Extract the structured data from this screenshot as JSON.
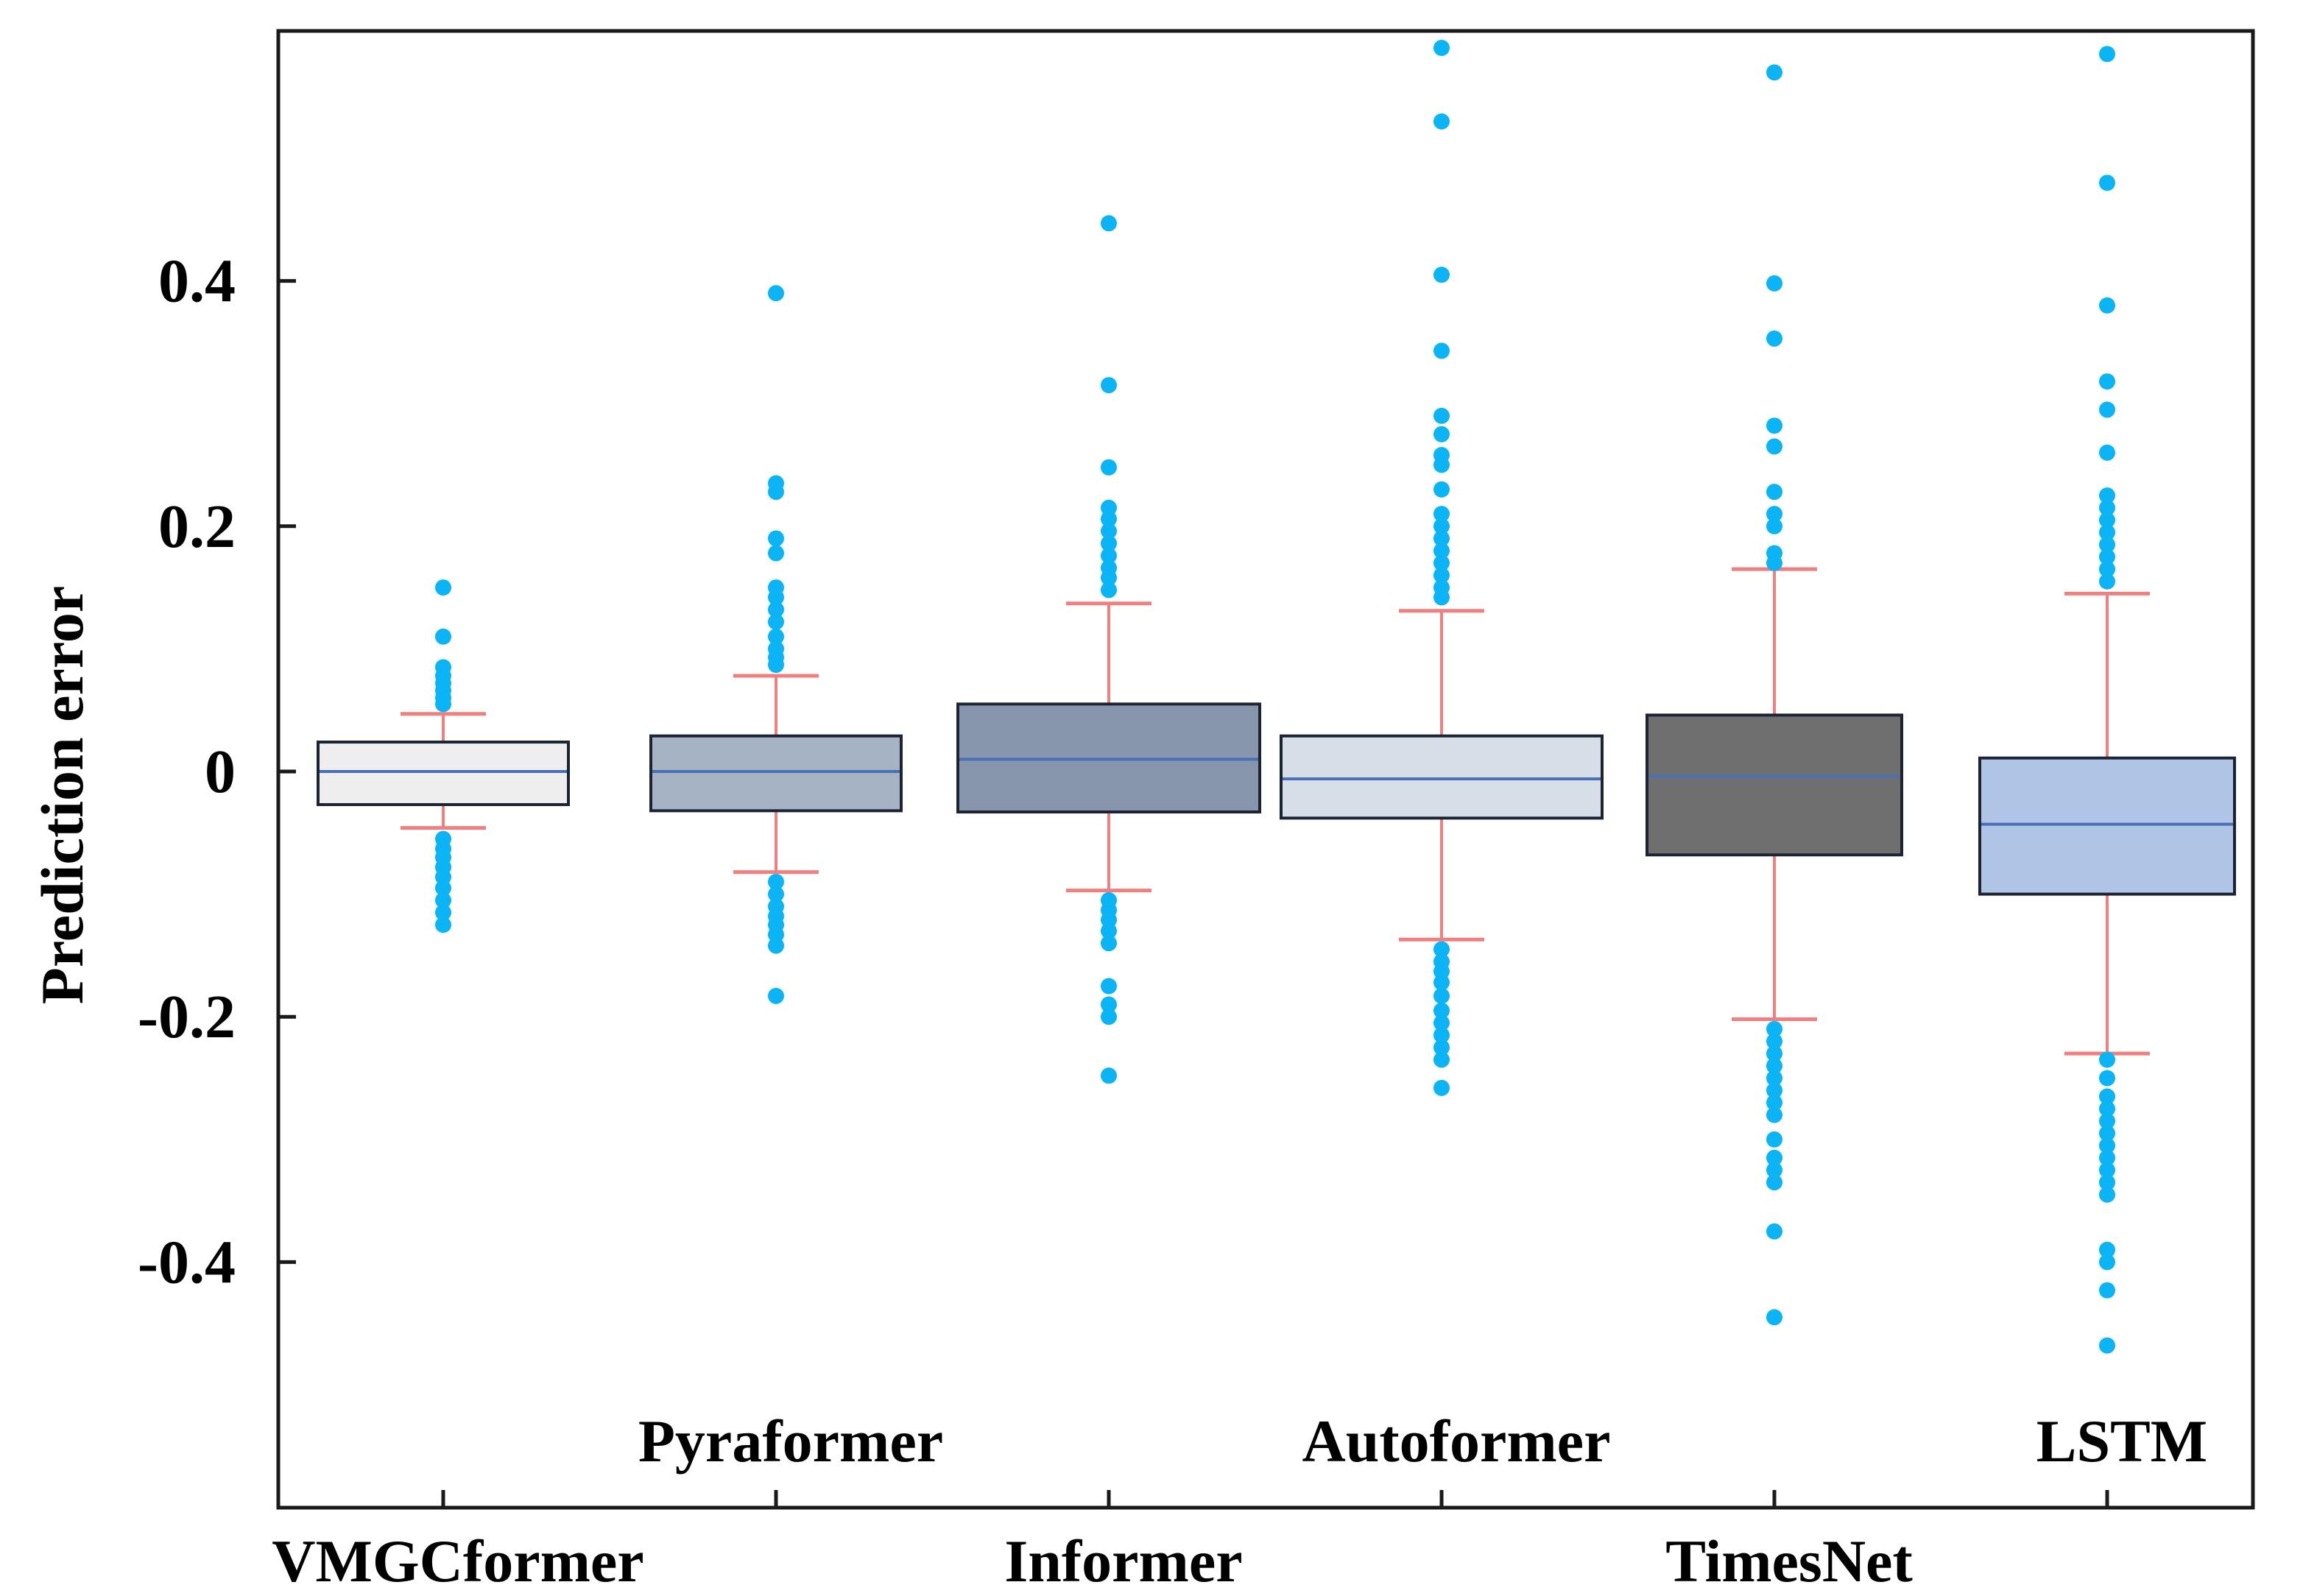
{
  "chart_data": {
    "type": "box",
    "title": "",
    "xlabel": "",
    "ylabel": "Prediction error",
    "ylim": [
      -0.6,
      0.6
    ],
    "yticks": [
      {
        "value": 0.4,
        "label": "0.4"
      },
      {
        "value": 0.2,
        "label": "0.2"
      },
      {
        "value": 0,
        "label": "0"
      },
      {
        "value": -0.2,
        "label": "-0.2"
      },
      {
        "value": -0.4,
        "label": "-0.4"
      }
    ],
    "grid": false,
    "legend": "none",
    "colors": {
      "median": "#4a6fb5",
      "whisker": "#f07f7f",
      "outlier": "#0bb5f5",
      "box_edge": "#1c2433",
      "axis": "#1a1a1a"
    },
    "series": [
      {
        "name": "VMGCformer",
        "label_row": "low",
        "fill": "#edeeed",
        "q1": -0.027,
        "median": 0.0,
        "q3": 0.024,
        "whisker_low": -0.046,
        "whisker_high": 0.047,
        "outliers": [
          0.15,
          0.11,
          0.085,
          0.078,
          0.072,
          0.066,
          0.06,
          0.055,
          -0.055,
          -0.063,
          -0.07,
          -0.078,
          -0.086,
          -0.095,
          -0.105,
          -0.115,
          -0.125
        ]
      },
      {
        "name": "Pyraformer",
        "label_row": "high",
        "fill": "#a5b3c5",
        "q1": -0.032,
        "median": 0.0,
        "q3": 0.029,
        "whisker_low": -0.082,
        "whisker_high": 0.078,
        "outliers": [
          0.39,
          0.235,
          0.228,
          0.19,
          0.178,
          0.15,
          0.142,
          0.132,
          0.122,
          0.11,
          0.1,
          0.093,
          0.087,
          -0.09,
          -0.1,
          -0.11,
          -0.118,
          -0.125,
          -0.133,
          -0.142,
          -0.183
        ]
      },
      {
        "name": "Informer",
        "label_row": "low",
        "fill": "#8796ad",
        "q1": -0.033,
        "median": 0.01,
        "q3": 0.055,
        "whisker_low": -0.097,
        "whisker_high": 0.137,
        "outliers": [
          0.447,
          0.315,
          0.248,
          0.215,
          0.206,
          0.196,
          0.186,
          0.176,
          0.166,
          0.158,
          0.148,
          -0.105,
          -0.113,
          -0.121,
          -0.13,
          -0.14,
          -0.175,
          -0.19,
          -0.2,
          -0.248
        ]
      },
      {
        "name": "Autoformer",
        "label_row": "high",
        "fill": "#d6dee8",
        "q1": -0.038,
        "median": -0.006,
        "q3": 0.029,
        "whisker_low": -0.137,
        "whisker_high": 0.131,
        "outliers": [
          0.59,
          0.53,
          0.405,
          0.343,
          0.29,
          0.275,
          0.258,
          0.25,
          0.23,
          0.21,
          0.2,
          0.19,
          0.18,
          0.17,
          0.16,
          0.15,
          0.142,
          -0.145,
          -0.155,
          -0.163,
          -0.172,
          -0.183,
          -0.195,
          -0.205,
          -0.215,
          -0.225,
          -0.235,
          -0.258
        ]
      },
      {
        "name": "TimesNet",
        "label_row": "low",
        "fill": "#6f6f6f",
        "q1": -0.068,
        "median": -0.004,
        "q3": 0.046,
        "whisker_low": -0.202,
        "whisker_high": 0.165,
        "outliers": [
          0.57,
          0.398,
          0.353,
          0.282,
          0.265,
          0.228,
          0.21,
          0.2,
          0.178,
          0.17,
          -0.21,
          -0.22,
          -0.23,
          -0.24,
          -0.25,
          -0.26,
          -0.27,
          -0.28,
          -0.3,
          -0.315,
          -0.325,
          -0.335,
          -0.375,
          -0.445
        ]
      },
      {
        "name": "LSTM",
        "label_row": "high",
        "fill": "#b0c4e5",
        "q1": -0.1,
        "median": -0.043,
        "q3": 0.011,
        "whisker_low": -0.23,
        "whisker_high": 0.145,
        "outliers": [
          0.585,
          0.48,
          0.38,
          0.318,
          0.295,
          0.26,
          0.225,
          0.215,
          0.205,
          0.195,
          0.185,
          0.175,
          0.165,
          0.155,
          -0.235,
          -0.25,
          -0.265,
          -0.275,
          -0.285,
          -0.295,
          -0.305,
          -0.315,
          -0.325,
          -0.335,
          -0.345,
          -0.39,
          -0.4,
          -0.423,
          -0.468
        ]
      }
    ]
  }
}
